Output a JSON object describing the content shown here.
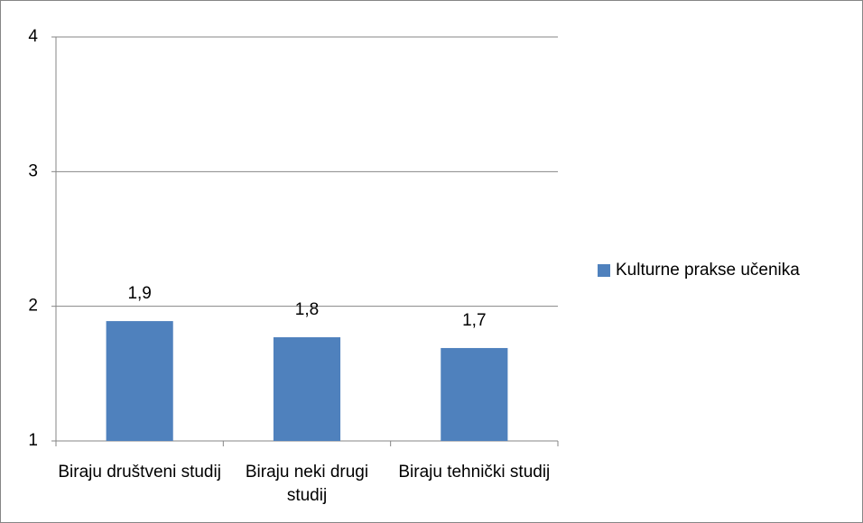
{
  "chart_data": {
    "type": "bar",
    "categories": [
      "Biraju društveni studij",
      "Biraju neki drugi studij",
      "Biraju tehnički studij"
    ],
    "series": [
      {
        "name": "Kulturne prakse učenika",
        "color": "#4f81bd",
        "values": [
          1.89,
          1.77,
          1.69
        ],
        "value_labels": [
          "1,9",
          "1,8",
          "1,7"
        ]
      }
    ],
    "ylim": [
      1,
      4
    ],
    "yticks": [
      1,
      2,
      3,
      4
    ],
    "grid": true,
    "legend": "right"
  }
}
